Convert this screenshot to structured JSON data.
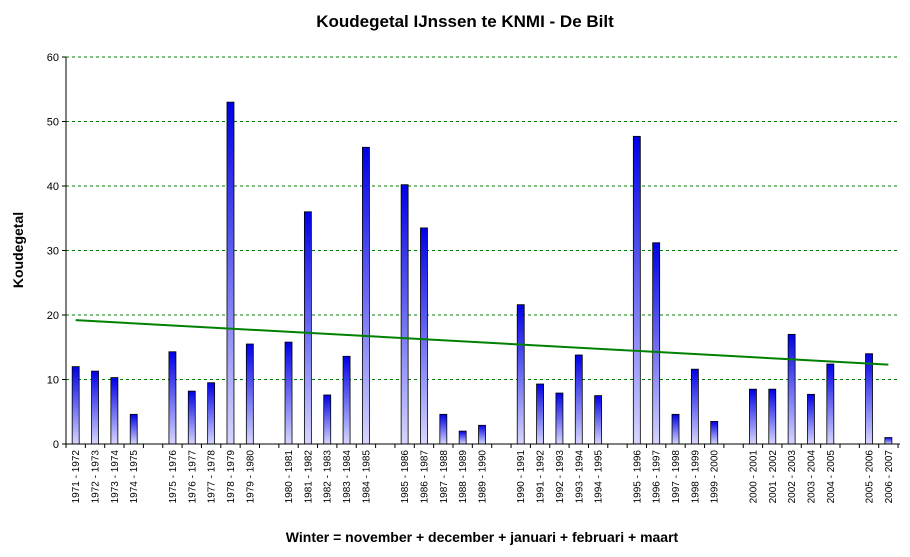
{
  "chart_data": {
    "type": "bar",
    "title": "Koudegetal IJnssen te KNMI - De Bilt",
    "xlabel": "Winter = november + december + januari + februari + maart",
    "ylabel": "Koudegetal",
    "ylim": [
      0,
      60
    ],
    "yticks": [
      0,
      10,
      20,
      30,
      40,
      50,
      60
    ],
    "grid": true,
    "categories": [
      "1971 - 1972",
      "1972 - 1973",
      "1973 - 1974",
      "1974 - 1975",
      "1975 - 1976",
      "1976 - 1977",
      "1977 - 1978",
      "1978 - 1979",
      "1979 - 1980",
      "1980 - 1981",
      "1981 - 1982",
      "1982 - 1983",
      "1983 - 1984",
      "1984 - 1985",
      "1985 - 1986",
      "1986 - 1987",
      "1987 - 1988",
      "1988 - 1989",
      "1989 - 1990",
      "1990 - 1991",
      "1991 - 1992",
      "1992 - 1993",
      "1993 - 1994",
      "1994 - 1995",
      "1995 - 1996",
      "1996 - 1997",
      "1997 - 1998",
      "1998 - 1999",
      "1999 - 2000",
      "2000 - 2001",
      "2001 - 2002",
      "2002 - 2003",
      "2003 - 2004",
      "2004 - 2005",
      "2005 - 2006",
      "2006 - 2007"
    ],
    "values": [
      12.0,
      11.3,
      10.3,
      4.6,
      14.3,
      8.2,
      9.5,
      53.0,
      15.5,
      15.8,
      36.0,
      7.6,
      13.6,
      46.0,
      40.2,
      33.5,
      4.6,
      2.0,
      2.9,
      21.6,
      9.3,
      7.9,
      13.8,
      7.5,
      47.7,
      31.2,
      4.6,
      11.6,
      3.5,
      8.5,
      8.5,
      17.0,
      7.7,
      12.4,
      14.0,
      1.0
    ],
    "trendline": {
      "start": 19.2,
      "end": 12.3,
      "color": "#008000"
    },
    "colors": {
      "bar_top": "#0000e6",
      "bar_bottom": "#d6d6ff",
      "grid": "#008000",
      "axis": "#000000"
    }
  }
}
